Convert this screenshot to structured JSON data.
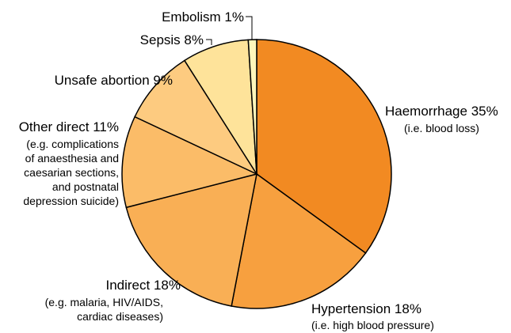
{
  "chart_data": {
    "type": "pie",
    "categories": [
      "Haemorrhage",
      "Hypertension",
      "Indirect",
      "Other direct",
      "Unsafe abortion",
      "Sepsis",
      "Embolism"
    ],
    "values": [
      35,
      18,
      18,
      11,
      9,
      8,
      1
    ],
    "value_labels": [
      "35%",
      "18%",
      "18%",
      "11%",
      "9%",
      "8%",
      "1%"
    ],
    "notes": [
      [
        "(i.e. blood loss)"
      ],
      [
        "(i.e. high blood pressure)"
      ],
      [
        "(e.g. malaria, HIV/AIDS,",
        "cardiac diseases)"
      ],
      [
        "(e.g. complications",
        "of anaesthesia and",
        "caesarian sections,",
        "and postnatal",
        "depression suicide)"
      ],
      [],
      [],
      []
    ],
    "colors": [
      "#f28a22",
      "#f7a03f",
      "#f9af55",
      "#fbbc68",
      "#fdcb80",
      "#fee39a",
      "#fff6bb"
    ]
  }
}
